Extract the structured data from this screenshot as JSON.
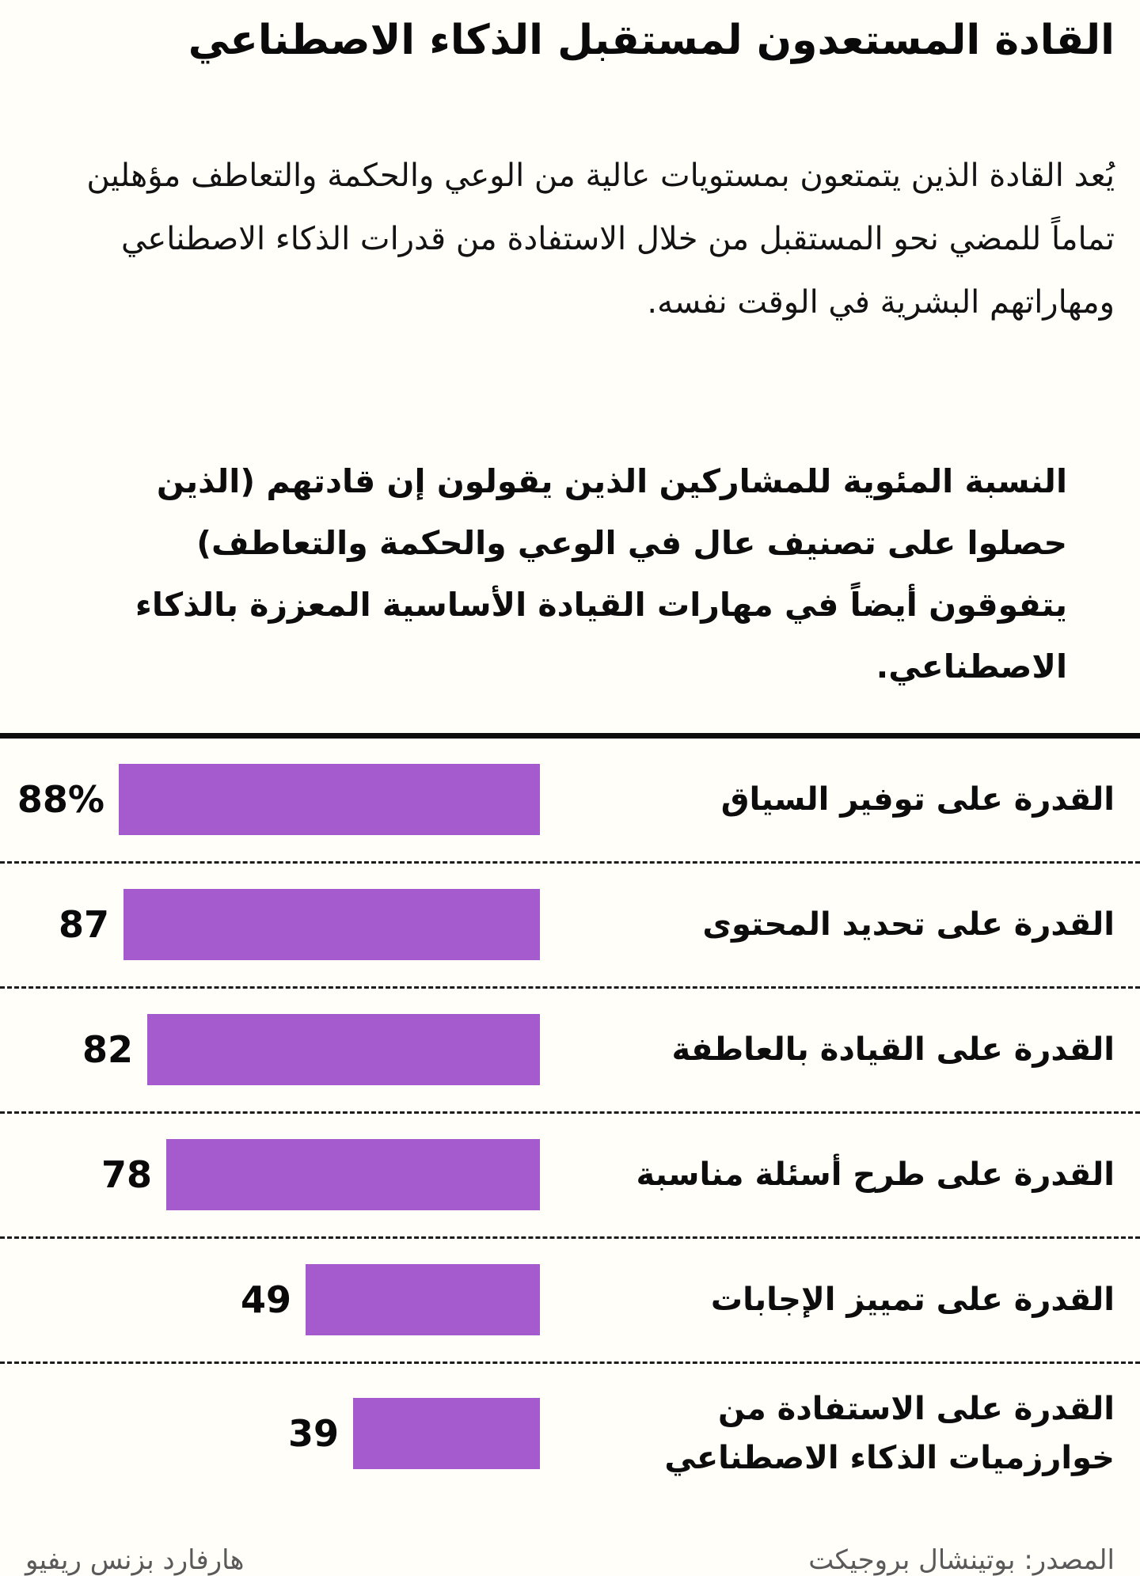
{
  "page": {
    "title": "القادة المستعدون لمستقبل الذكاء الاصطناعي",
    "intro": "يُعد القادة الذين يتمتعون بمستويات عالية من الوعي والحكمة والتعاطف مؤهلين تماماً للمضي نحو المستقبل من خلال الاستفادة من قدرات الذكاء الاصطناعي ومهاراتهم البشرية في الوقت نفسه.",
    "chart_heading": "النسبة المئوية للمشاركين الذين يقولون إن قادتهم (الذين حصلوا على تصنيف عال في الوعي والحكمة والتعاطف) يتفوقون أيضاً في مهارات القيادة الأساسية المعززة بالذكاء الاصطناعي.",
    "footer": {
      "source": "المصدر: بوتينشال بروجيكت",
      "publication": "هارفارد بزنس ريفيو"
    }
  },
  "colors": {
    "bar": "#a55acd",
    "background": "#fffef9",
    "text": "#111111",
    "footer_text": "#5a5a5a"
  },
  "chart_data": {
    "type": "bar",
    "orientation": "horizontal",
    "direction": "rtl",
    "title": "النسبة المئوية للمشاركين الذين يقولون إن قادتهم (الذين حصلوا على تصنيف عال في الوعي والحكمة والتعاطف) يتفوقون أيضاً في مهارات القيادة الأساسية المعززة بالذكاء الاصطناعي.",
    "categories": [
      "القدرة على توفير السياق",
      "القدرة على تحديد المحتوى",
      "القدرة على القيادة بالعاطفة",
      "القدرة على طرح أسئلة مناسبة",
      "القدرة على تمييز الإجابات",
      "القدرة على الاستفادة من خوارزميات الذكاء الاصطناعي"
    ],
    "values": [
      88,
      87,
      82,
      78,
      49,
      39
    ],
    "value_labels": [
      "88%",
      "87",
      "82",
      "78",
      "49",
      "39"
    ],
    "max_value": 88,
    "xlim": [
      0,
      88
    ],
    "grid": false,
    "legend": false,
    "separators": "dashed"
  }
}
